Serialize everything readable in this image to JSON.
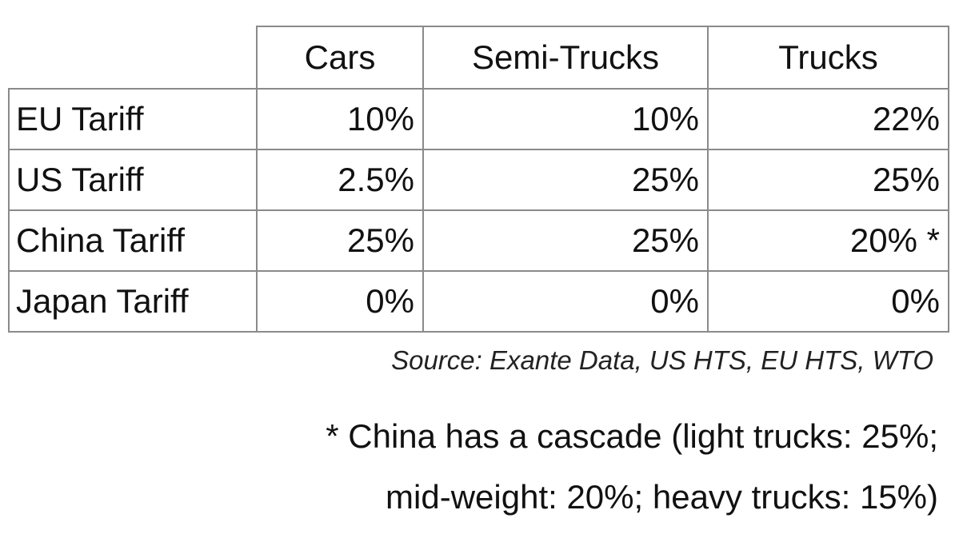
{
  "table": {
    "columns": [
      "Cars",
      "Semi-Trucks",
      "Trucks"
    ],
    "rows": [
      {
        "label": "EU Tariff",
        "cells": [
          "10%",
          "10%",
          "22%"
        ]
      },
      {
        "label": "US Tariff",
        "cells": [
          "2.5%",
          "25%",
          "25%"
        ]
      },
      {
        "label": "China Tariff",
        "cells": [
          "25%",
          "25%",
          "20% *"
        ]
      },
      {
        "label": "Japan Tariff",
        "cells": [
          "0%",
          "0%",
          "0%"
        ]
      }
    ]
  },
  "source": "Source: Exante Data, US HTS, EU HTS, WTO",
  "note": [
    "* China has a cascade (light trucks: 25%;",
    "mid-weight: 20%; heavy trucks: 15%)"
  ]
}
